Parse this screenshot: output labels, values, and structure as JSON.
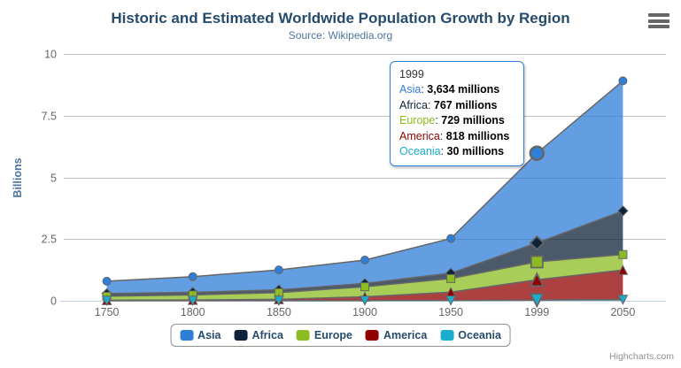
{
  "chart_data": {
    "type": "area",
    "stacking": "normal",
    "title": "Historic and Estimated Worldwide Population Growth by Region",
    "subtitle": "Source: Wikipedia.org",
    "categories": [
      "1750",
      "1800",
      "1850",
      "1900",
      "1950",
      "1999",
      "2050"
    ],
    "xlabel": "",
    "ylabel": "Billions",
    "unit": "millions",
    "ylim": [
      0,
      10
    ],
    "yticks": [
      0,
      2.5,
      5,
      7.5,
      10
    ],
    "grid": true,
    "legend_position": "bottom",
    "hover_category": "1999",
    "series": [
      {
        "name": "Asia",
        "color": "#2f7ed8",
        "marker": "circle",
        "values": [
          502,
          635,
          809,
          947,
          1402,
          3634,
          5268
        ]
      },
      {
        "name": "Africa",
        "color": "#0d233a",
        "marker": "diamond",
        "values": [
          106,
          107,
          111,
          133,
          221,
          767,
          1766
        ]
      },
      {
        "name": "Europe",
        "color": "#8bbc21",
        "marker": "square",
        "values": [
          163,
          203,
          276,
          408,
          547,
          729,
          628
        ]
      },
      {
        "name": "America",
        "color": "#910000",
        "marker": "triangle",
        "values": [
          18,
          31,
          54,
          156,
          339,
          818,
          1201
        ]
      },
      {
        "name": "Oceania",
        "color": "#1aadce",
        "marker": "triangle-down",
        "values": [
          2,
          2,
          2,
          6,
          13,
          30,
          46
        ]
      }
    ]
  },
  "tooltip": {
    "header": "1999",
    "rows": [
      {
        "name": "Asia",
        "color": "#2f7ed8",
        "value": "3,634 millions"
      },
      {
        "name": "Africa",
        "color": "#0d233a",
        "value": "767 millions"
      },
      {
        "name": "Europe",
        "color": "#8bbc21",
        "value": "729 millions"
      },
      {
        "name": "America",
        "color": "#910000",
        "value": "818 millions"
      },
      {
        "name": "Oceania",
        "color": "#1aadce",
        "value": "30 millions"
      }
    ]
  },
  "legend": {
    "items": [
      {
        "label": "Asia",
        "color": "#2f7ed8"
      },
      {
        "label": "Africa",
        "color": "#0d233a"
      },
      {
        "label": "Europe",
        "color": "#8bbc21"
      },
      {
        "label": "America",
        "color": "#910000"
      },
      {
        "label": "Oceania",
        "color": "#1aadce"
      }
    ]
  },
  "credits": {
    "label": "Highcharts.com"
  },
  "icons": {
    "menu": "hamburger-menu-icon"
  },
  "colors": {
    "title": "#274b6d",
    "subtitle": "#4d759e",
    "axis_label": "#666666",
    "axis_title": "#4d759e",
    "grid": "#c0c0c0",
    "axis_line": "#c0d0e0",
    "series_line": "#666666",
    "marker_border": "#666666",
    "legend_border": "#909090",
    "legend_text": "#274b6d",
    "tooltip_border": "#2f7ed8",
    "fill_opacity": 0.75
  }
}
